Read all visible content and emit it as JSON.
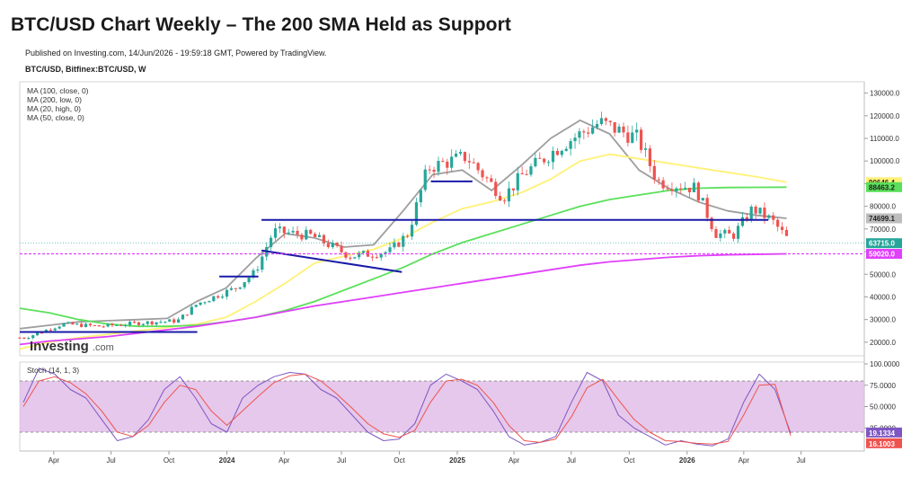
{
  "header": {
    "title": "BTC/USD Chart Weekly – The 200 SMA Held as Support",
    "published": "Published on Investing.com, 14/Jun/2026 - 19:59:18 GMT, Powered by TradingView.",
    "symbol": "BTC/USD, Bitfinex:BTC/USD, W"
  },
  "legend": [
    {
      "label": "MA (100, close, 0)"
    },
    {
      "label": "MA (200, low, 0)"
    },
    {
      "label": "MA (20, high, 0)"
    },
    {
      "label": "MA (50, close, 0)"
    }
  ],
  "watermark": {
    "text_main": "Investing",
    "text_suffix": ".com"
  },
  "stoch": {
    "label": "Stoch (14, 1, 3)",
    "upper": 80,
    "lower": 20,
    "k_value": "19.1334",
    "d_value": "16.1003"
  },
  "colors": {
    "up": "#26a69a",
    "down": "#ef5350",
    "ma20": "#9e9e9e",
    "ma50": "#fff176",
    "ma100": "#5ae05a",
    "ma200": "#e040fb",
    "trend": "#1a1aa8",
    "stoch_fill": "#e1bee7",
    "stoch_k": "#7e57c2",
    "stoch_d": "#ef5350"
  },
  "chart_data": [
    {
      "type": "candlestick",
      "title": "BTC/USD Weekly",
      "x_tick_labels": [
        "Apr",
        "Jul",
        "Oct",
        "2024",
        "Apr",
        "Jul",
        "Oct",
        "2025",
        "Apr",
        "Jul",
        "Oct",
        "2026",
        "Apr",
        "Jul"
      ],
      "y_tick_labels": [
        "20000.0",
        "30000.0",
        "40000.0",
        "50000.0",
        "60000.0",
        "70000.0",
        "80000.0",
        "90000.0",
        "100000.0",
        "110000.0",
        "120000.0",
        "130000.0"
      ],
      "ylim": [
        14000,
        135000
      ],
      "price_badges": [
        {
          "label": "90646.4",
          "value": 90646.4,
          "color": "#fff176",
          "text_color": "#222"
        },
        {
          "label": "88463.2",
          "value": 88463.2,
          "color": "#5ae05a",
          "text_color": "#222"
        },
        {
          "label": "74699.1",
          "value": 74699.1,
          "color": "#bdbdbd",
          "text_color": "#222"
        },
        {
          "label": "63715.0",
          "value": 63715.0,
          "color": "#26a69a",
          "text_color": "#fff"
        },
        {
          "label": "59020.0",
          "value": 59020.0,
          "color": "#e040fb",
          "text_color": "#fff"
        }
      ],
      "price_close_series": [
        {
          "date": "2023-02",
          "close": 22000
        },
        {
          "date": "2023-04",
          "close": 28000
        },
        {
          "date": "2023-06",
          "close": 27000
        },
        {
          "date": "2023-08",
          "close": 28500
        },
        {
          "date": "2023-10",
          "close": 29500
        },
        {
          "date": "2023-11",
          "close": 37000
        },
        {
          "date": "2024-01",
          "close": 44000
        },
        {
          "date": "2024-02",
          "close": 51000
        },
        {
          "date": "2024-03",
          "close": 69000
        },
        {
          "date": "2024-05",
          "close": 67000
        },
        {
          "date": "2024-07",
          "close": 58000
        },
        {
          "date": "2024-09",
          "close": 60000
        },
        {
          "date": "2024-10",
          "close": 68000
        },
        {
          "date": "2024-11",
          "close": 97000
        },
        {
          "date": "2025-01",
          "close": 102000
        },
        {
          "date": "2025-03",
          "close": 84000
        },
        {
          "date": "2025-04",
          "close": 94000
        },
        {
          "date": "2025-06",
          "close": 107000
        },
        {
          "date": "2025-08",
          "close": 117000
        },
        {
          "date": "2025-10",
          "close": 110000
        },
        {
          "date": "2025-11",
          "close": 91000
        },
        {
          "date": "2026-01",
          "close": 88000
        },
        {
          "date": "2026-02",
          "close": 68000
        },
        {
          "date": "2026-03",
          "close": 67000
        },
        {
          "date": "2026-04",
          "close": 79000
        },
        {
          "date": "2026-05",
          "close": 74000
        },
        {
          "date": "2026-06",
          "close": 63715
        }
      ],
      "moving_averages": [
        {
          "name": "MA (20, high, 0)",
          "values": [
            26000,
            27500,
            29000,
            29500,
            30000,
            30500,
            38000,
            44000,
            57000,
            68000,
            66000,
            62000,
            63000,
            78000,
            94000,
            96000,
            87000,
            98000,
            110000,
            118000,
            112000,
            96000,
            88000,
            82000,
            78000,
            76000,
            74699
          ]
        },
        {
          "name": "MA (50, close, 0)",
          "values": [
            17000,
            20000,
            22000,
            23500,
            25000,
            26500,
            28000,
            31000,
            38000,
            46000,
            55000,
            58000,
            61000,
            66000,
            73000,
            79000,
            82000,
            86000,
            92000,
            100000,
            103000,
            101000,
            99000,
            97000,
            95000,
            93000,
            90646
          ]
        },
        {
          "name": "MA (100, close, 0)",
          "values": [
            35000,
            33000,
            30000,
            28000,
            27000,
            27000,
            27500,
            29000,
            31000,
            34000,
            38000,
            43000,
            48000,
            53000,
            59000,
            64000,
            68000,
            72000,
            76000,
            80000,
            83000,
            85000,
            87000,
            88000,
            88300,
            88400,
            88463
          ]
        },
        {
          "name": "MA (200, low, 0)",
          "values": [
            19000,
            20500,
            21500,
            22500,
            24000,
            25500,
            27000,
            29000,
            31000,
            33500,
            36000,
            38000,
            40000,
            42000,
            44000,
            46000,
            48000,
            50000,
            52000,
            54000,
            55500,
            56500,
            57500,
            58200,
            58600,
            58800,
            59020
          ]
        }
      ]
    },
    {
      "type": "line",
      "title": "Stoch (14, 1, 3)",
      "y_tick_labels": [
        "100.0000",
        "75.0000",
        "50.0000",
        "25.0000"
      ],
      "ylim": [
        0,
        100
      ],
      "series": [
        {
          "name": "%K",
          "values": [
            55,
            95,
            88,
            70,
            60,
            35,
            10,
            15,
            35,
            70,
            85,
            60,
            30,
            20,
            60,
            75,
            85,
            90,
            88,
            70,
            60,
            40,
            20,
            10,
            12,
            30,
            75,
            88,
            80,
            70,
            45,
            15,
            5,
            8,
            15,
            55,
            90,
            80,
            40,
            25,
            15,
            5,
            10,
            6,
            4,
            12,
            55,
            88,
            70,
            19
          ]
        },
        {
          "name": "%D",
          "values": [
            50,
            80,
            85,
            78,
            65,
            45,
            20,
            15,
            28,
            55,
            75,
            70,
            45,
            28,
            45,
            62,
            78,
            86,
            88,
            80,
            65,
            48,
            30,
            18,
            14,
            22,
            55,
            80,
            82,
            75,
            55,
            28,
            10,
            8,
            12,
            38,
            72,
            82,
            58,
            35,
            20,
            10,
            9,
            7,
            6,
            9,
            40,
            75,
            76,
            16
          ]
        }
      ]
    }
  ]
}
